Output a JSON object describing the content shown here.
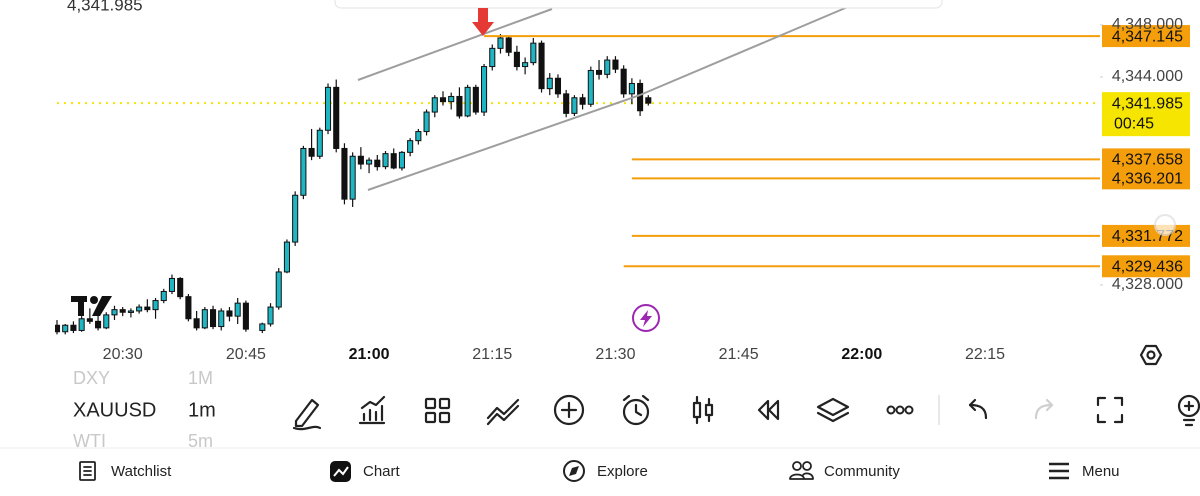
{
  "chart_data": {
    "type": "candlestick",
    "symbol_price": "4,341.985",
    "xlim": [
      "20:22",
      "22:29"
    ],
    "xticks": [
      "20:30",
      "20:45",
      "21:00",
      "21:15",
      "21:30",
      "21:45",
      "22:00",
      "22:15"
    ],
    "ylim": [
      4324.15,
      4349.92
    ],
    "yticks": [
      {
        "value": 4348,
        "label": "4,348.000"
      },
      {
        "value": 4344,
        "label": "4,344.000"
      },
      {
        "value": 4328,
        "label": "4,328.000"
      }
    ],
    "up_color": "#1fb5c2",
    "down_color": "#111111",
    "level_color": "#f59e0b",
    "last_price_color": "#f5e500",
    "candles": {
      "x": [
        "20:22",
        "20:23",
        "20:24",
        "20:25",
        "20:26",
        "20:27",
        "20:28",
        "20:29",
        "20:30",
        "20:31",
        "20:32",
        "20:33",
        "20:34",
        "20:35",
        "20:36",
        "20:37",
        "20:38",
        "20:39",
        "20:40",
        "20:41",
        "20:42",
        "20:43",
        "20:44",
        "20:45",
        "20:47",
        "20:48",
        "20:49",
        "20:50",
        "20:51",
        "20:52",
        "20:53",
        "20:54",
        "20:55",
        "20:56",
        "20:57",
        "20:58",
        "20:59",
        "21:00",
        "21:01",
        "21:02",
        "21:03",
        "21:04",
        "21:05",
        "21:06",
        "21:07",
        "21:08",
        "21:09",
        "21:10",
        "21:11",
        "21:12",
        "21:13",
        "21:14",
        "21:15",
        "21:16",
        "21:17",
        "21:18",
        "21:19",
        "21:20",
        "21:21",
        "21:22",
        "21:23",
        "21:24",
        "21:25",
        "21:26",
        "21:27",
        "21:28",
        "21:29",
        "21:30",
        "21:31",
        "21:32",
        "21:33",
        "21:34"
      ],
      "open": [
        4324.9,
        4324.4,
        4324.9,
        4324.5,
        4325.4,
        4325.2,
        4324.7,
        4325.7,
        4326.1,
        4325.9,
        4326.0,
        4326.3,
        4326.1,
        4326.8,
        4327.5,
        4328.5,
        4327.1,
        4325.4,
        4324.7,
        4326.1,
        4324.8,
        4326.0,
        4325.6,
        4326.6,
        4324.5,
        4325.0,
        4326.3,
        4329.0,
        4331.3,
        4334.9,
        4338.5,
        4337.9,
        4339.9,
        4343.2,
        4338.5,
        4334.6,
        4337.9,
        4337.3,
        4337.6,
        4337.1,
        4338.1,
        4337.0,
        4338.2,
        4339.1,
        4339.8,
        4341.3,
        4342.4,
        4342.1,
        4342.5,
        4341.0,
        4343.2,
        4341.3,
        4344.8,
        4346.2,
        4347.0,
        4345.9,
        4344.8,
        4345.1,
        4346.6,
        4343.1,
        4343.9,
        4342.7,
        4341.2,
        4342.4,
        4341.9,
        4344.5,
        4344.2,
        4345.3,
        4344.6,
        4342.7,
        4343.5,
        4342.4
      ],
      "high": [
        4325.3,
        4325.0,
        4325.2,
        4325.6,
        4326.2,
        4325.8,
        4325.9,
        4326.4,
        4326.3,
        4326.2,
        4326.5,
        4326.9,
        4327.0,
        4327.7,
        4328.8,
        4328.6,
        4327.3,
        4326.0,
        4326.3,
        4326.4,
        4326.2,
        4326.3,
        4327.0,
        4326.8,
        4325.1,
        4326.6,
        4329.3,
        4331.5,
        4335.2,
        4338.7,
        4340.0,
        4340.1,
        4343.5,
        4343.8,
        4338.9,
        4338.2,
        4338.6,
        4337.8,
        4338.0,
        4338.3,
        4338.5,
        4338.3,
        4339.3,
        4340.0,
        4341.5,
        4342.6,
        4342.9,
        4342.8,
        4343.2,
        4343.4,
        4343.4,
        4345.0,
        4346.5,
        4347.3,
        4347.2,
        4346.4,
        4345.5,
        4347.0,
        4346.8,
        4344.3,
        4344.2,
        4343.0,
        4342.6,
        4342.7,
        4344.8,
        4345.3,
        4345.6,
        4345.6,
        4344.9,
        4343.9,
        4343.8,
        4342.6
      ],
      "low": [
        4324.2,
        4324.2,
        4324.3,
        4324.4,
        4325.0,
        4324.5,
        4324.6,
        4325.3,
        4325.6,
        4325.5,
        4325.8,
        4325.9,
        4325.4,
        4326.6,
        4327.3,
        4326.9,
        4325.2,
        4324.5,
        4324.6,
        4324.6,
        4324.5,
        4325.2,
        4325.0,
        4324.4,
        4324.3,
        4324.8,
        4326.1,
        4328.9,
        4331.0,
        4334.6,
        4337.6,
        4337.7,
        4339.6,
        4338.2,
        4334.2,
        4334.0,
        4336.9,
        4336.6,
        4336.8,
        4336.9,
        4336.9,
        4336.8,
        4337.9,
        4338.8,
        4339.5,
        4340.9,
        4341.8,
        4341.5,
        4340.8,
        4340.9,
        4341.1,
        4341.0,
        4344.5,
        4345.8,
        4345.6,
        4344.5,
        4344.2,
        4344.9,
        4342.8,
        4342.6,
        4342.4,
        4340.9,
        4341.0,
        4341.5,
        4341.7,
        4343.8,
        4343.9,
        4344.3,
        4342.4,
        4341.9,
        4341.0,
        4341.8
      ],
      "close": [
        4324.4,
        4324.9,
        4324.5,
        4325.4,
        4325.2,
        4324.7,
        4325.7,
        4326.1,
        4325.9,
        4326.0,
        4326.3,
        4326.1,
        4326.8,
        4327.5,
        4328.5,
        4327.1,
        4325.4,
        4324.7,
        4326.1,
        4324.8,
        4326.0,
        4325.6,
        4326.6,
        4324.6,
        4325.0,
        4326.3,
        4329.0,
        4331.3,
        4334.9,
        4338.5,
        4337.9,
        4339.9,
        4343.2,
        4338.5,
        4334.6,
        4337.9,
        4337.3,
        4337.6,
        4337.1,
        4338.1,
        4337.0,
        4338.2,
        4339.1,
        4339.8,
        4341.3,
        4342.4,
        4342.1,
        4342.5,
        4341.0,
        4343.2,
        4341.3,
        4344.8,
        4346.2,
        4347.0,
        4345.9,
        4344.8,
        4345.1,
        4346.6,
        4343.1,
        4343.9,
        4342.7,
        4341.2,
        4342.4,
        4341.9,
        4344.5,
        4344.2,
        4345.3,
        4344.6,
        4342.7,
        4343.5,
        4341.4,
        4341.985
      ]
    },
    "levels": [
      {
        "value": 4347.145,
        "label": "4,347.145",
        "start": "21:14"
      },
      {
        "value": 4337.658,
        "label": "4,337.658",
        "start": "21:32"
      },
      {
        "value": 4336.201,
        "label": "4,336.201",
        "start": "21:32"
      },
      {
        "value": 4331.772,
        "label": "4,331.772",
        "start": "21:32"
      },
      {
        "value": 4329.436,
        "label": "4,329.436",
        "start": "21:31"
      }
    ],
    "last_price": {
      "value": 4341.985,
      "label": "4,341.985",
      "countdown": "00:45"
    }
  },
  "symbols": [
    {
      "symbol": "DXY",
      "interval": "1M"
    },
    {
      "symbol": "XAUUSD",
      "interval": "1m"
    },
    {
      "symbol": "WTI",
      "interval": "5m"
    }
  ],
  "nav": [
    "Watchlist",
    "Chart",
    "Explore",
    "Community",
    "Menu"
  ]
}
